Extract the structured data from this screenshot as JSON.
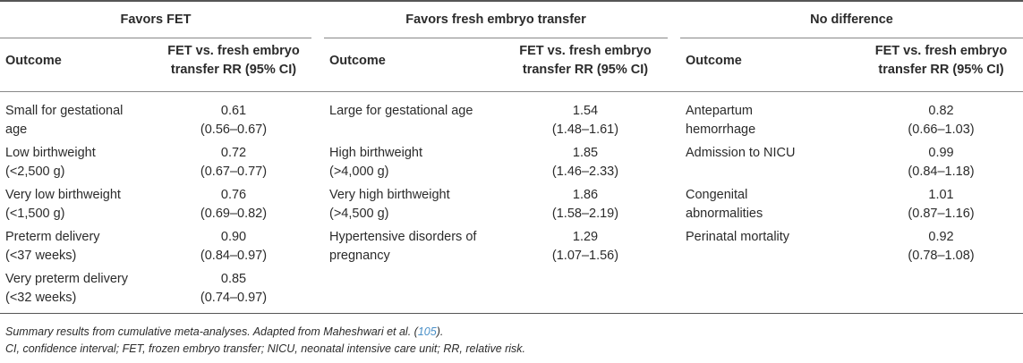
{
  "groups": {
    "favors_fet": "Favors FET",
    "favors_fresh": "Favors fresh embryo transfer",
    "no_difference": "No difference"
  },
  "columns": {
    "outcome": "Outcome",
    "rr_line1": "FET vs. fresh embryo",
    "rr_line2": "transfer RR (95% CI)"
  },
  "rows": [
    {
      "fet_outcome": [
        "Small for gestational",
        "age"
      ],
      "fet_rr": [
        "0.61",
        "(0.56–0.67)"
      ],
      "fresh_outcome": [
        "Large for gestational age",
        ""
      ],
      "fresh_rr": [
        "1.54",
        "(1.48–1.61)"
      ],
      "nd_outcome": [
        "Antepartum",
        "hemorrhage"
      ],
      "nd_rr": [
        "0.82",
        "(0.66–1.03)"
      ]
    },
    {
      "fet_outcome": [
        "Low birthweight",
        "(<2,500 g)"
      ],
      "fet_rr": [
        "0.72",
        "(0.67–0.77)"
      ],
      "fresh_outcome": [
        "High birthweight",
        "(>4,000 g)"
      ],
      "fresh_rr": [
        "1.85",
        "(1.46–2.33)"
      ],
      "nd_outcome": [
        "Admission to NICU",
        ""
      ],
      "nd_rr": [
        "0.99",
        "(0.84–1.18)"
      ]
    },
    {
      "fet_outcome": [
        "Very low birthweight",
        "(<1,500 g)"
      ],
      "fet_rr": [
        "0.76",
        "(0.69–0.82)"
      ],
      "fresh_outcome": [
        "Very high birthweight",
        "(>4,500 g)"
      ],
      "fresh_rr": [
        "1.86",
        "(1.58–2.19)"
      ],
      "nd_outcome": [
        "Congenital",
        "abnormalities"
      ],
      "nd_rr": [
        "1.01",
        "(0.87–1.16)"
      ]
    },
    {
      "fet_outcome": [
        "Preterm delivery",
        "(<37 weeks)"
      ],
      "fet_rr": [
        "0.90",
        "(0.84–0.97)"
      ],
      "fresh_outcome": [
        "Hypertensive disorders of",
        "pregnancy"
      ],
      "fresh_rr": [
        "1.29",
        "(1.07–1.56)"
      ],
      "nd_outcome": [
        "Perinatal mortality",
        ""
      ],
      "nd_rr": [
        "0.92",
        "(0.78–1.08)"
      ]
    },
    {
      "fet_outcome": [
        "Very preterm delivery",
        "(<32 weeks)"
      ],
      "fet_rr": [
        "0.85",
        "(0.74–0.97)"
      ],
      "fresh_outcome": [
        "",
        ""
      ],
      "fresh_rr": [
        "",
        ""
      ],
      "nd_outcome": [
        "",
        ""
      ],
      "nd_rr": [
        "",
        ""
      ]
    }
  ],
  "footnotes": {
    "line1_text": "Summary results from cumulative meta-analyses. Adapted from Maheshwari et al. (",
    "line1_ref": "105",
    "line1_end": ").",
    "line2": "CI, confidence interval; FET, frozen embryo transfer; NICU, neonatal intensive care unit; RR, relative risk."
  }
}
